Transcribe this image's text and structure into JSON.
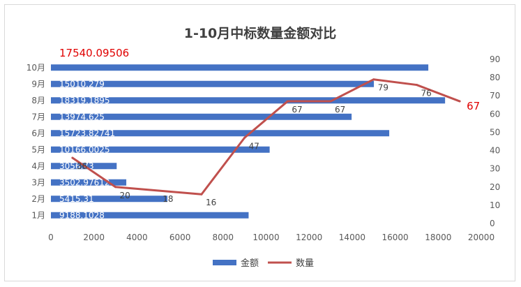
{
  "chart_data": {
    "type": "bar+line",
    "title": "1-10月中标数量金额对比",
    "categories": [
      "1月",
      "2月",
      "3月",
      "4月",
      "5月",
      "6月",
      "7月",
      "8月",
      "9月",
      "10月"
    ],
    "series": [
      {
        "name": "金额",
        "type": "bar",
        "orientation": "horizontal",
        "color": "#4472c4",
        "values": [
          9188.1028,
          5415.31,
          3502.97612,
          3056.73,
          10166.0025,
          15723.82741,
          13974.625,
          18319.1895,
          15010.279,
          17540.09506
        ],
        "labels": [
          "9188.1028",
          "5415.31",
          "3502.97612",
          "3056.73",
          "10166.0025",
          "15723.82741",
          "13974.625",
          "18319.1895",
          "15010.279",
          "17540.09506"
        ]
      },
      {
        "name": "数量",
        "type": "line",
        "color": "#c0504d",
        "x": [
          1000,
          3000,
          5000,
          7000,
          9000,
          11000,
          13000,
          15000,
          17000,
          19000
        ],
        "values": [
          36,
          20,
          18,
          16,
          47,
          67,
          67,
          79,
          76,
          67
        ]
      }
    ],
    "x_axis": {
      "min": 0,
      "max": 20000,
      "ticks": [
        0,
        2000,
        4000,
        6000,
        8000,
        10000,
        12000,
        14000,
        16000,
        18000,
        20000
      ]
    },
    "y2_axis": {
      "min": 0,
      "max": 90,
      "ticks": [
        0,
        10,
        20,
        30,
        40,
        50,
        60,
        70,
        80,
        90
      ]
    },
    "highlight_color": "#e00000",
    "grid": false,
    "legend": {
      "position": "bottom",
      "items": [
        "金额",
        "数量"
      ]
    }
  }
}
